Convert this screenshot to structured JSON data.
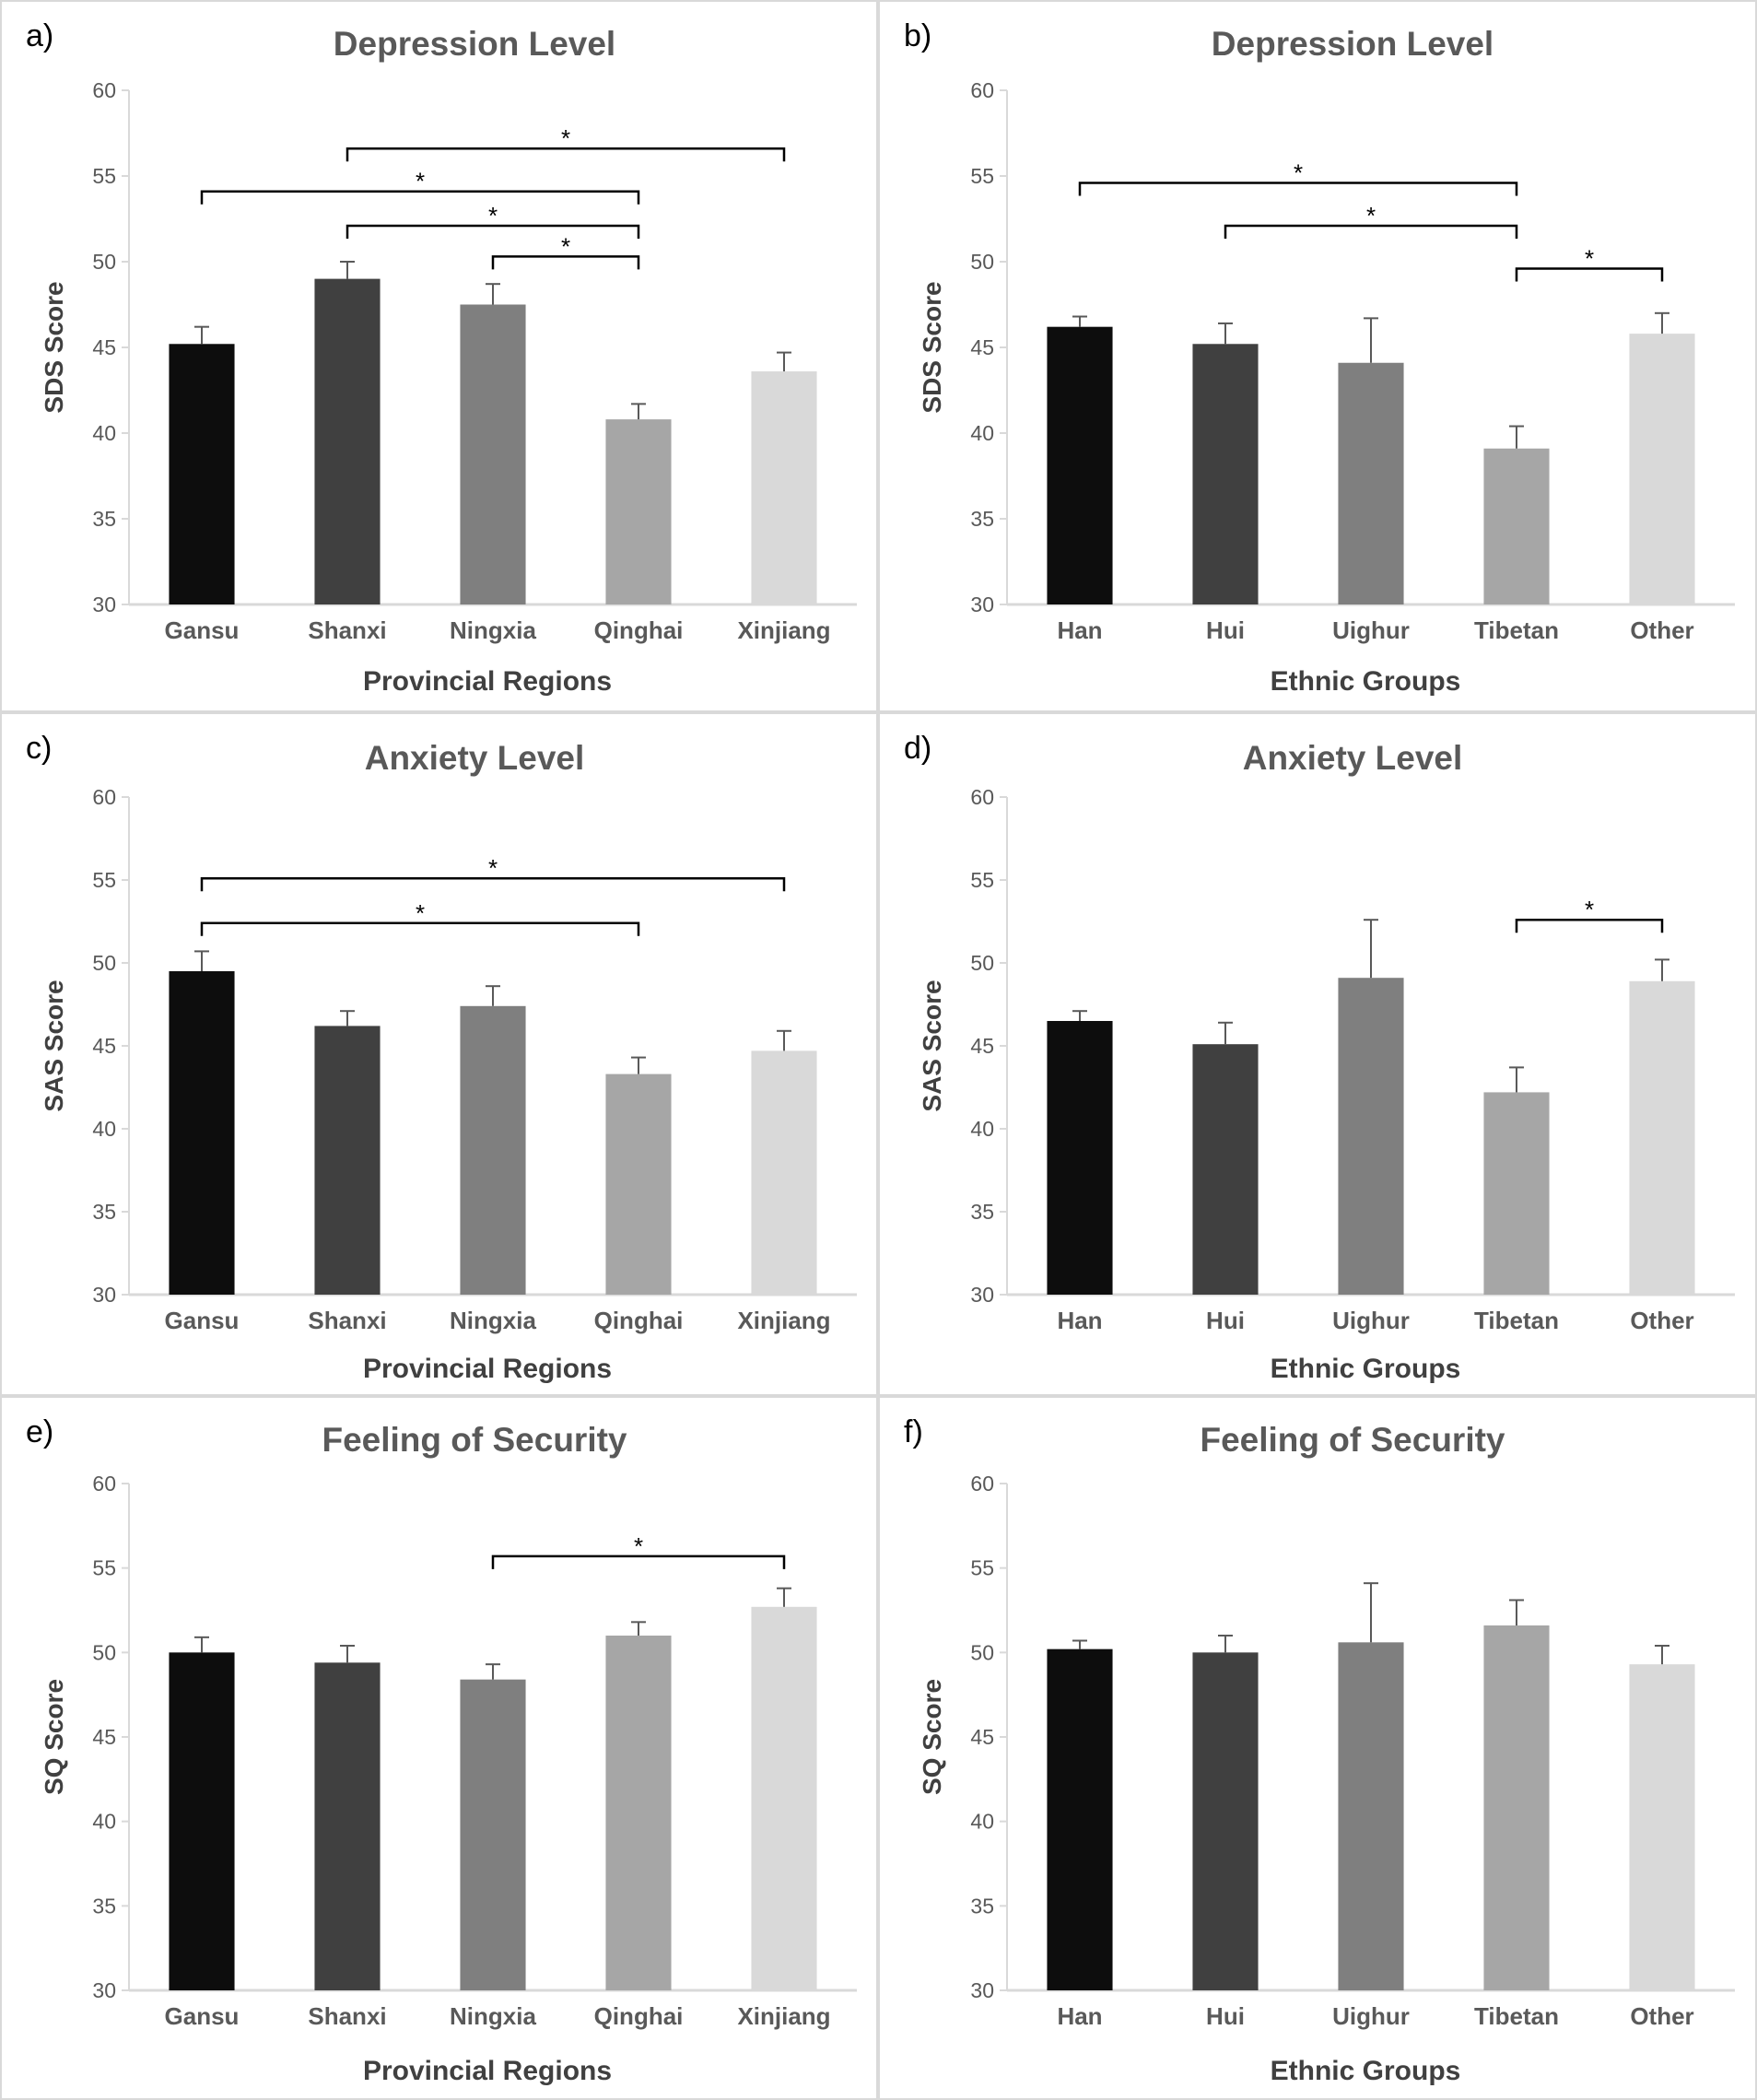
{
  "colors": {
    "panel_border": "#d9d9d9",
    "axis": "#d9d9d9",
    "title_text": "#595959",
    "axis_label_text": "#404040",
    "tick_text": "#595959",
    "bracket": "#000000",
    "error_bar": "#595959",
    "panel_label_text": "#000000",
    "bars": [
      "#0d0d0d",
      "#404040",
      "#7f7f7f",
      "#a6a6a6",
      "#d9d9d9"
    ]
  },
  "chart_data": [
    {
      "panel_label": "a)",
      "type": "bar",
      "title": "Depression Level",
      "xlabel": "Provincial Regions",
      "ylabel": "SDS Score",
      "ylim": [
        30,
        60
      ],
      "yticks": [
        "30",
        "35",
        "40",
        "45",
        "50",
        "55",
        "60"
      ],
      "categories": [
        "Gansu",
        "Shanxi",
        "Ningxia",
        "Qinghai",
        "Xinjiang"
      ],
      "values": [
        45.2,
        49.0,
        47.5,
        40.8,
        43.6
      ],
      "errors": [
        1.0,
        1.0,
        1.2,
        0.9,
        1.1
      ],
      "significance": [
        {
          "from": 1,
          "to": 4,
          "y": 56.6,
          "label": "*"
        },
        {
          "from": 0,
          "to": 3,
          "y": 54.1,
          "label": "*"
        },
        {
          "from": 1,
          "to": 3,
          "y": 52.1,
          "label": "*"
        },
        {
          "from": 2,
          "to": 3,
          "y": 50.3,
          "label": "*"
        }
      ]
    },
    {
      "panel_label": "b)",
      "type": "bar",
      "title": "Depression Level",
      "xlabel": "Ethnic Groups",
      "ylabel": "SDS Score",
      "ylim": [
        30,
        60
      ],
      "yticks": [
        "30",
        "35",
        "40",
        "45",
        "50",
        "55",
        "60"
      ],
      "categories": [
        "Han",
        "Hui",
        "Uighur",
        "Tibetan",
        "Other"
      ],
      "values": [
        46.2,
        45.2,
        44.1,
        39.1,
        45.8
      ],
      "errors": [
        0.6,
        1.2,
        2.6,
        1.3,
        1.2
      ],
      "significance": [
        {
          "from": 0,
          "to": 3,
          "y": 54.6,
          "label": "*"
        },
        {
          "from": 1,
          "to": 3,
          "y": 52.1,
          "label": "*"
        },
        {
          "from": 3,
          "to": 4,
          "y": 49.6,
          "label": "*"
        }
      ]
    },
    {
      "panel_label": "c)",
      "type": "bar",
      "title": "Anxiety Level",
      "xlabel": "Provincial Regions",
      "ylabel": "SAS Score",
      "ylim": [
        30,
        60
      ],
      "yticks": [
        "30",
        "35",
        "40",
        "45",
        "50",
        "55",
        "60"
      ],
      "categories": [
        "Gansu",
        "Shanxi",
        "Ningxia",
        "Qinghai",
        "Xinjiang"
      ],
      "values": [
        49.5,
        46.2,
        47.4,
        43.3,
        44.7
      ],
      "errors": [
        1.2,
        0.9,
        1.2,
        1.0,
        1.2
      ],
      "significance": [
        {
          "from": 0,
          "to": 4,
          "y": 55.1,
          "label": "*"
        },
        {
          "from": 0,
          "to": 3,
          "y": 52.4,
          "label": "*"
        }
      ]
    },
    {
      "panel_label": "d)",
      "type": "bar",
      "title": "Anxiety Level",
      "xlabel": "Ethnic Groups",
      "ylabel": "SAS Score",
      "ylim": [
        30,
        60
      ],
      "yticks": [
        "30",
        "35",
        "40",
        "45",
        "50",
        "55",
        "60"
      ],
      "categories": [
        "Han",
        "Hui",
        "Uighur",
        "Tibetan",
        "Other"
      ],
      "values": [
        46.5,
        45.1,
        49.1,
        42.2,
        48.9
      ],
      "errors": [
        0.6,
        1.3,
        3.5,
        1.5,
        1.3
      ],
      "significance": [
        {
          "from": 3,
          "to": 4,
          "y": 52.6,
          "label": "*"
        }
      ]
    },
    {
      "panel_label": "e)",
      "type": "bar",
      "title": "Feeling of Security",
      "xlabel": "Provincial Regions",
      "ylabel": "SQ Score",
      "ylim": [
        30,
        60
      ],
      "yticks": [
        "30",
        "35",
        "40",
        "45",
        "50",
        "55",
        "60"
      ],
      "categories": [
        "Gansu",
        "Shanxi",
        "Ningxia",
        "Qinghai",
        "Xinjiang"
      ],
      "values": [
        50.0,
        49.4,
        48.4,
        51.0,
        52.7
      ],
      "errors": [
        0.9,
        1.0,
        0.9,
        0.8,
        1.1
      ],
      "significance": [
        {
          "from": 2,
          "to": 4,
          "y": 55.7,
          "label": "*"
        }
      ]
    },
    {
      "panel_label": "f)",
      "type": "bar",
      "title": "Feeling of Security",
      "xlabel": "Ethnic Groups",
      "ylabel": "SQ Score",
      "ylim": [
        30,
        60
      ],
      "yticks": [
        "30",
        "35",
        "40",
        "45",
        "50",
        "55",
        "60"
      ],
      "categories": [
        "Han",
        "Hui",
        "Uighur",
        "Tibetan",
        "Other"
      ],
      "values": [
        50.2,
        50.0,
        50.6,
        51.6,
        49.3
      ],
      "errors": [
        0.5,
        1.0,
        3.5,
        1.5,
        1.1
      ],
      "significance": []
    }
  ]
}
